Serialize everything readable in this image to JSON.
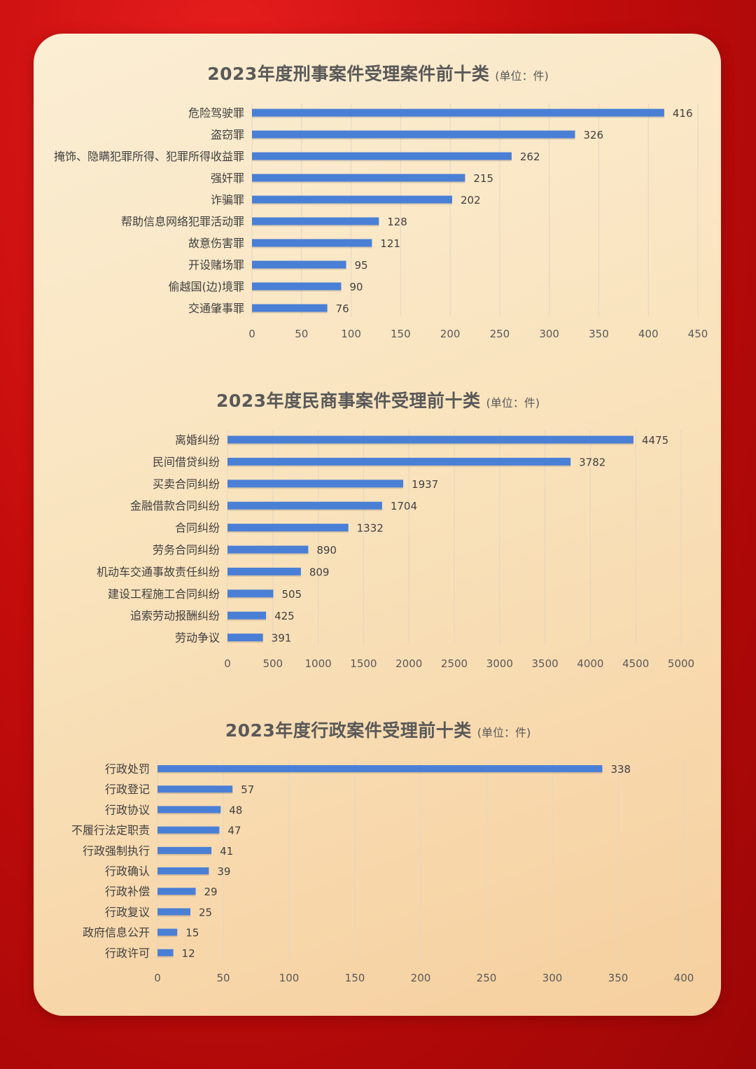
{
  "chart_data": [
    {
      "type": "bar",
      "orientation": "horizontal",
      "title": "2023年度刑事案件受理案件前十类",
      "unit": "(单位：件)",
      "categories": [
        "危险驾驶罪",
        "盗窃罪",
        "掩饰、隐瞒犯罪所得、犯罪所得收益罪",
        "强奸罪",
        "诈骗罪",
        "帮助信息网络犯罪活动罪",
        "故意伤害罪",
        "开设赌场罪",
        "偷越国(边)境罪",
        "交通肇事罪"
      ],
      "values": [
        416,
        326,
        262,
        215,
        202,
        128,
        121,
        95,
        90,
        76
      ],
      "xlim": [
        0,
        450
      ],
      "ticks": [
        "0",
        "50",
        "100",
        "150",
        "200",
        "250",
        "300",
        "350",
        "400",
        "450"
      ],
      "grid": true,
      "bar_color": "#4a7fd6"
    },
    {
      "type": "bar",
      "orientation": "horizontal",
      "title": "2023年度民商事案件受理前十类",
      "unit": "(单位：件)",
      "categories": [
        "离婚纠纷",
        "民间借贷纠纷",
        "买卖合同纠纷",
        "金融借款合同纠纷",
        "合同纠纷",
        "劳务合同纠纷",
        "机动车交通事故责任纠纷",
        "建设工程施工合同纠纷",
        "追索劳动报酬纠纷",
        "劳动争议"
      ],
      "values": [
        4475,
        3782,
        1937,
        1704,
        1332,
        890,
        809,
        505,
        425,
        391
      ],
      "xlim": [
        0,
        5000
      ],
      "ticks": [
        "0",
        "500",
        "1000",
        "1500",
        "2000",
        "2500",
        "3000",
        "3500",
        "4000",
        "4500",
        "5000"
      ],
      "grid": true,
      "bar_color": "#4a7fd6"
    },
    {
      "type": "bar",
      "orientation": "horizontal",
      "title": "2023年度行政案件受理前十类",
      "unit": "(单位：件)",
      "categories": [
        "行政处罚",
        "行政登记",
        "行政协议",
        "不履行法定职责",
        "行政强制执行",
        "行政确认",
        "行政补偿",
        "行政复议",
        "政府信息公开",
        "行政许可"
      ],
      "values": [
        338,
        57,
        48,
        47,
        41,
        39,
        29,
        25,
        15,
        12
      ],
      "xlim": [
        0,
        400
      ],
      "ticks": [
        "0",
        "50",
        "100",
        "150",
        "200",
        "250",
        "300",
        "350",
        "400"
      ],
      "grid": true,
      "bar_color": "#4a7fd6"
    }
  ]
}
